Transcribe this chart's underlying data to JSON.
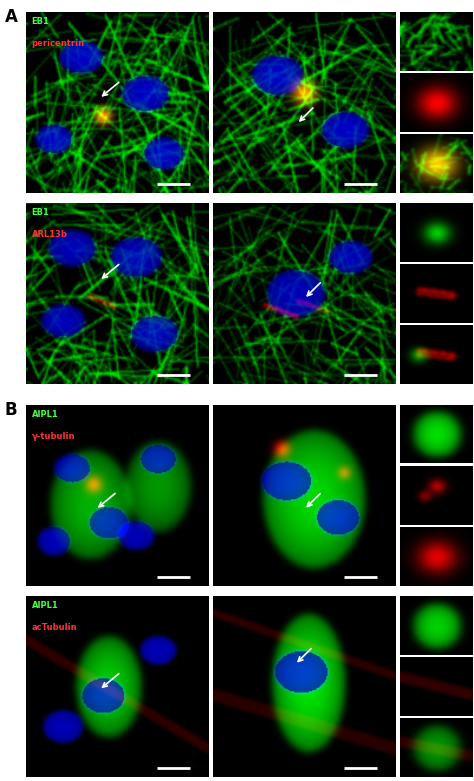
{
  "panel_A_label": "A",
  "panel_B_label": "B",
  "rows": [
    {
      "labels": [
        "EB1",
        "pericentrin"
      ],
      "colors": [
        "#44ff44",
        "#ff3333"
      ]
    },
    {
      "labels": [
        "EB1",
        "ARL13b"
      ],
      "colors": [
        "#44ff44",
        "#ff3333"
      ]
    },
    {
      "labels": [
        "AIPL1",
        "γ-tubulin"
      ],
      "colors": [
        "#44ff44",
        "#ff3333"
      ]
    },
    {
      "labels": [
        "AIPL1",
        "acTubulin"
      ],
      "colors": [
        "#44ff44",
        "#ff3333"
      ]
    }
  ],
  "bg_color": "#000000",
  "figure_bg": "#ffffff",
  "label_fontsize": 6.0,
  "panel_label_fontsize": 12,
  "arrow_color": "#ffffff",
  "scalebar_color": "#ffffff"
}
